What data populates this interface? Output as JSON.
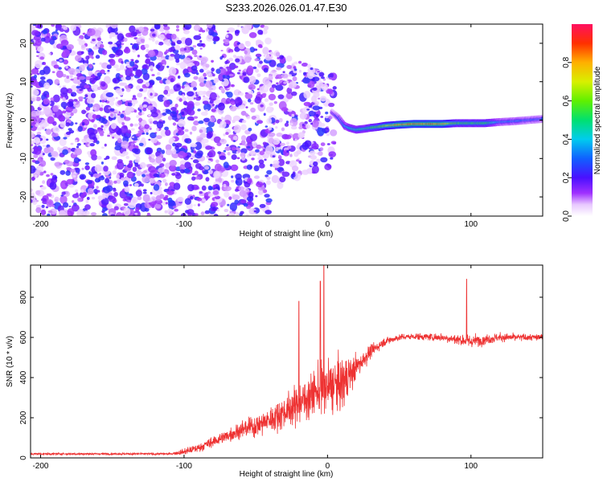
{
  "title": "S233.2026.026.01.47.E30",
  "chart_data": [
    {
      "type": "heatmap",
      "name": "spectrogram",
      "xlabel": "Height of straight line (km)",
      "ylabel": "Frequency (Hz)",
      "xlim": [
        -207,
        150
      ],
      "ylim": [
        -25,
        25
      ],
      "xticks": [
        -200,
        -100,
        0,
        100
      ],
      "yticks": [
        -20,
        -10,
        0,
        10,
        20
      ],
      "grid": false,
      "description_values": {
        "noise_region_km": [
          -207,
          5
        ],
        "signal_band_hz": [
          -2,
          1
        ],
        "signal_region_km": [
          5,
          150
        ]
      },
      "signal_line": {
        "x": [
          3,
          8,
          12,
          15,
          20,
          25,
          30,
          35,
          40,
          50,
          60,
          70,
          80,
          90,
          100,
          110,
          120,
          130,
          140,
          150
        ],
        "y": [
          2,
          0.5,
          -1.5,
          -2,
          -2.5,
          -2.3,
          -2,
          -1.8,
          -1.5,
          -1.2,
          -1,
          -1,
          -1,
          -0.8,
          -0.8,
          -0.8,
          -0.5,
          -0.3,
          0,
          0.3
        ],
        "amplitude": [
          0.2,
          0.3,
          0.4,
          0.45,
          0.5,
          0.5,
          0.55,
          0.6,
          0.7,
          0.85,
          0.9,
          0.9,
          0.85,
          0.6,
          0.55,
          0.6,
          0.35,
          0.35,
          0.3,
          0.3
        ]
      }
    },
    {
      "type": "colorbar",
      "name": "colorbar",
      "label": "Normalized spectral amplitude",
      "range": [
        0,
        1
      ],
      "ticks": [
        0.0,
        0.2,
        0.4,
        0.6,
        0.8
      ]
    },
    {
      "type": "line",
      "name": "snr",
      "xlabel": "Height of straight line (km)",
      "ylabel": "SNR (10 * v/v)",
      "xlim": [
        -207,
        150
      ],
      "ylim": [
        0,
        960
      ],
      "xticks": [
        -200,
        -100,
        0,
        100
      ],
      "yticks": [
        0,
        200,
        400,
        600,
        800
      ],
      "color": "#ee3333",
      "envelope_x": [
        -207,
        -150,
        -110,
        -100,
        -90,
        -80,
        -70,
        -60,
        -50,
        -40,
        -30,
        -20,
        -10,
        0,
        10,
        20,
        30,
        40,
        50,
        60,
        80,
        100,
        120,
        150
      ],
      "envelope_mean": [
        20,
        20,
        20,
        30,
        50,
        80,
        110,
        140,
        160,
        190,
        230,
        270,
        320,
        350,
        370,
        450,
        530,
        580,
        600,
        605,
        600,
        580,
        600,
        600
      ],
      "envelope_spread": [
        10,
        10,
        10,
        30,
        40,
        50,
        60,
        80,
        100,
        120,
        150,
        180,
        220,
        250,
        250,
        120,
        60,
        40,
        30,
        30,
        40,
        60,
        40,
        30
      ],
      "peaks": [
        {
          "x": -2.5,
          "y": 960
        },
        {
          "x": -5,
          "y": 880
        },
        {
          "x": -20,
          "y": 780
        },
        {
          "x": 97,
          "y": 890
        }
      ]
    }
  ]
}
